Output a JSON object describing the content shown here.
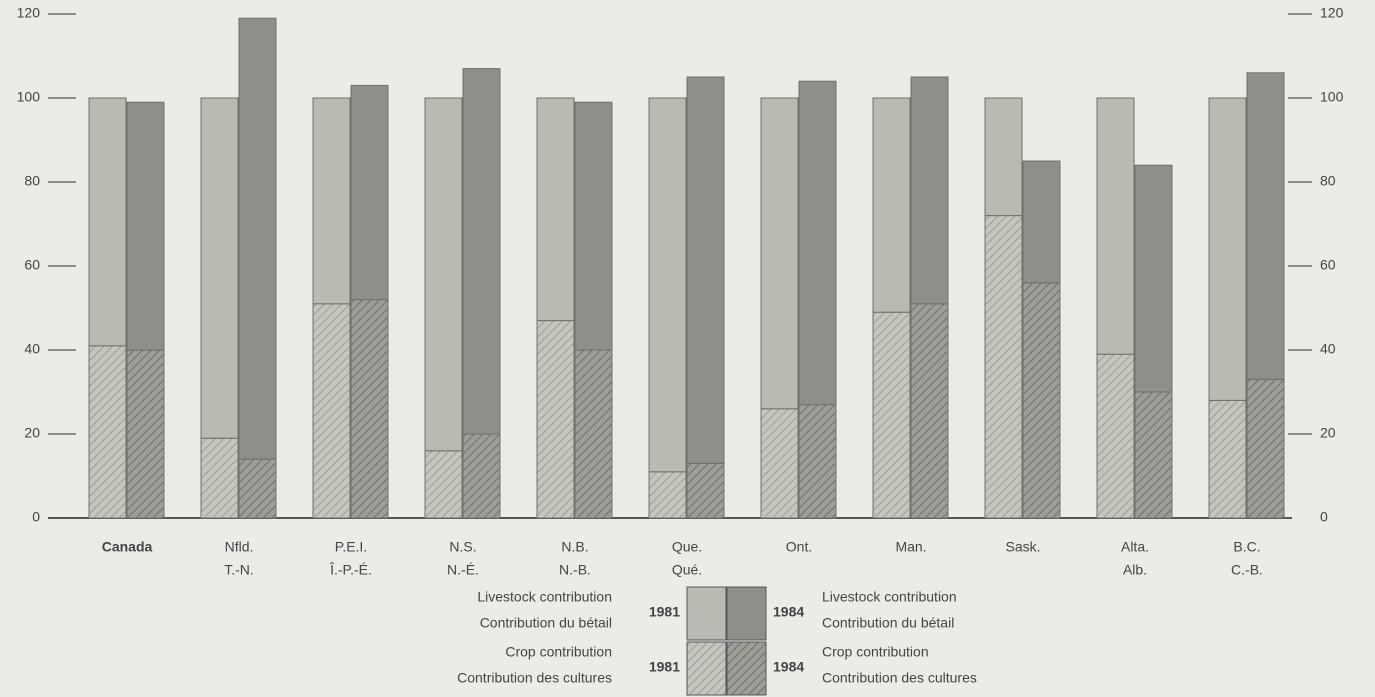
{
  "chart_data": {
    "type": "stacked-grouped-bar",
    "categories": [
      "Canada",
      "Nfld.",
      "P.E.I.",
      "N.S.",
      "N.B.",
      "Que.",
      "Ont.",
      "Man.",
      "Sask.",
      "Alta.",
      "B.C."
    ],
    "categories_alt": [
      null,
      "T.-N.",
      "Î.-P.-É.",
      "N.-É.",
      "N.-B.",
      "Qué.",
      null,
      null,
      null,
      "Alb.",
      "C.-B."
    ],
    "series": [
      {
        "name": "Crop contribution",
        "name_alt": "Contribution des cultures",
        "year": "1981",
        "color": "#b3b4ac",
        "pattern": "hatch",
        "values": [
          41,
          19,
          51,
          16,
          47,
          11,
          26,
          49,
          72,
          39,
          28
        ]
      },
      {
        "name": "Livestock contribution",
        "name_alt": "Contribution du bétail",
        "year": "1981",
        "color": "#b9bab2",
        "pattern": "solid",
        "values": [
          59,
          81,
          49,
          84,
          53,
          89,
          74,
          51,
          28,
          61,
          72
        ]
      },
      {
        "name": "Crop contribution",
        "name_alt": "Contribution des cultures",
        "year": "1984",
        "color": "#8b8c85",
        "pattern": "hatch",
        "values": [
          40,
          14,
          52,
          20,
          40,
          13,
          27,
          51,
          56,
          30,
          33
        ]
      },
      {
        "name": "Livestock contribution",
        "name_alt": "Contribution du bétail",
        "year": "1984",
        "color": "#8e8f88",
        "pattern": "solid",
        "values": [
          59,
          105,
          51,
          87,
          59,
          92,
          77,
          54,
          29,
          54,
          73
        ]
      }
    ],
    "ylim": [
      0,
      120
    ],
    "yticks": [
      0,
      20,
      40,
      60,
      80,
      100,
      120
    ],
    "y2lim": [
      0,
      120
    ],
    "y2ticks": [
      0,
      20,
      40,
      60,
      80,
      100,
      120
    ]
  }
}
